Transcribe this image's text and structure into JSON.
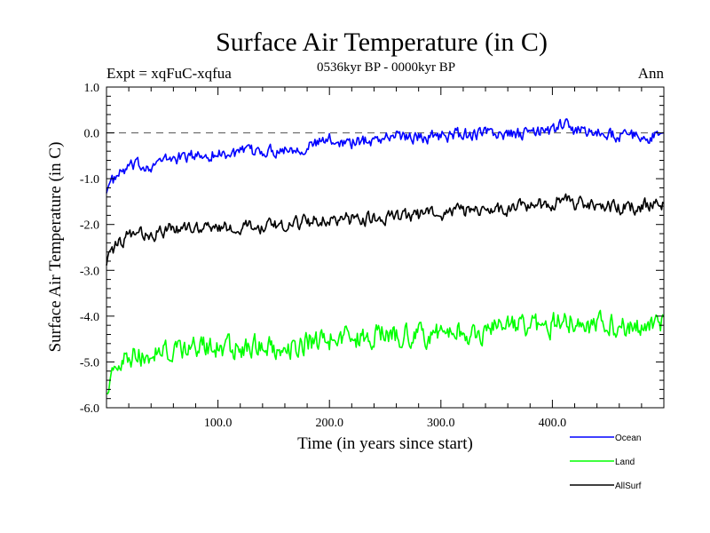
{
  "chart_data": {
    "type": "line",
    "title": "Surface Air Temperature (in C)",
    "subtitle": "0536kyr BP - 0000kyr BP",
    "left_label": "Expt = xqFuC-xqfua",
    "right_label": "Ann",
    "xlabel": "Time (in years since start)",
    "ylabel": "Surface Air Temperature (in C)",
    "xlim": [
      0,
      500
    ],
    "ylim": [
      -6.0,
      1.0
    ],
    "x_ticks": [
      100,
      200,
      300,
      400
    ],
    "x_tick_labels": [
      "100.0",
      "200.0",
      "300.0",
      "400.0"
    ],
    "y_ticks": [
      1.0,
      0.0,
      -1.0,
      -2.0,
      -3.0,
      -4.0,
      -5.0,
      -6.0
    ],
    "y_tick_labels": [
      "1.0",
      "0.0",
      "-1.0",
      "-2.0",
      "-3.0",
      "-4.0",
      "-5.0",
      "-6.0"
    ],
    "reference_line": {
      "y": 0.0,
      "style": "dashed"
    },
    "legend_position": "bottom-right, outside plot",
    "series": [
      {
        "name": "Ocean",
        "color": "#0000ff",
        "x": [
          0,
          10,
          20,
          40,
          60,
          80,
          100,
          120,
          140,
          160,
          180,
          200,
          220,
          240,
          260,
          280,
          300,
          320,
          340,
          360,
          380,
          400,
          410,
          420,
          440,
          460,
          480,
          500
        ],
        "values": [
          -1.2,
          -0.95,
          -0.75,
          -0.7,
          -0.55,
          -0.5,
          -0.45,
          -0.45,
          -0.4,
          -0.35,
          -0.3,
          -0.15,
          -0.2,
          -0.15,
          -0.05,
          -0.1,
          -0.05,
          -0.05,
          0.0,
          -0.05,
          0.0,
          0.05,
          0.2,
          0.05,
          0.0,
          -0.05,
          -0.1,
          -0.05
        ]
      },
      {
        "name": "Land",
        "color": "#00ff00",
        "x": [
          0,
          10,
          20,
          40,
          60,
          80,
          100,
          120,
          140,
          160,
          180,
          200,
          220,
          240,
          260,
          280,
          300,
          320,
          340,
          360,
          380,
          400,
          410,
          420,
          440,
          460,
          480,
          500
        ],
        "values": [
          -5.5,
          -5.2,
          -4.9,
          -4.8,
          -4.75,
          -4.7,
          -4.65,
          -4.7,
          -4.6,
          -4.7,
          -4.55,
          -4.5,
          -4.45,
          -4.4,
          -4.4,
          -4.45,
          -4.35,
          -4.35,
          -4.3,
          -4.3,
          -4.25,
          -4.2,
          -4.0,
          -4.15,
          -4.2,
          -4.25,
          -4.2,
          -4.1
        ]
      },
      {
        "name": "AllSurf",
        "color": "#000000",
        "x": [
          0,
          10,
          20,
          40,
          60,
          80,
          100,
          120,
          140,
          160,
          180,
          200,
          220,
          240,
          260,
          280,
          300,
          320,
          340,
          360,
          380,
          400,
          410,
          420,
          440,
          460,
          480,
          500
        ],
        "values": [
          -2.8,
          -2.45,
          -2.25,
          -2.2,
          -2.1,
          -2.1,
          -2.05,
          -2.05,
          -2.05,
          -2.0,
          -1.95,
          -1.85,
          -1.9,
          -1.85,
          -1.8,
          -1.8,
          -1.75,
          -1.7,
          -1.7,
          -1.65,
          -1.6,
          -1.55,
          -1.45,
          -1.55,
          -1.6,
          -1.65,
          -1.6,
          -1.55
        ]
      }
    ]
  }
}
